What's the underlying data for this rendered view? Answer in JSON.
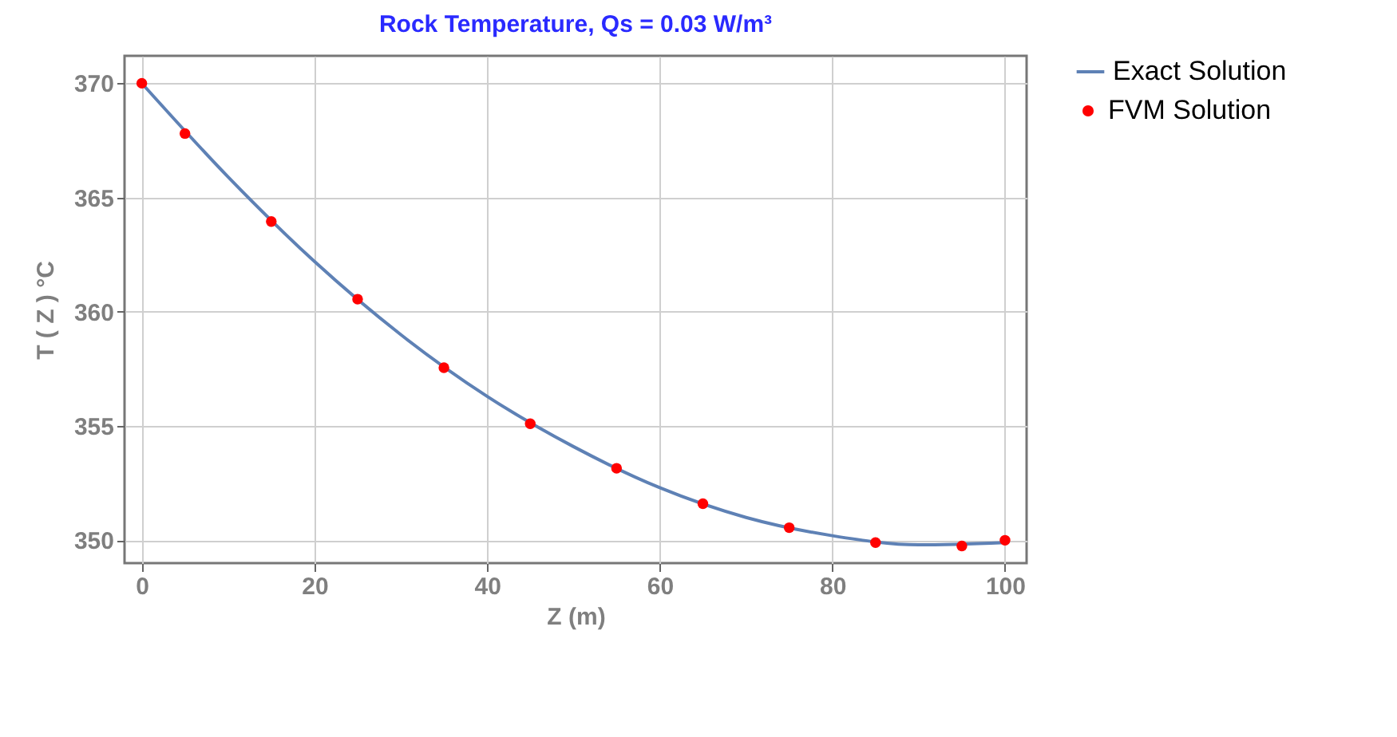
{
  "chart_data": {
    "type": "line",
    "title": "Rock Temperature,  Qs = 0.03 W/m³",
    "xlabel": "Z (m)",
    "ylabel": "T ( Z ) °C",
    "xlim": [
      -2,
      102.5
    ],
    "ylim": [
      349,
      371.2
    ],
    "xticks": [
      0,
      20,
      40,
      60,
      80,
      100
    ],
    "yticks": [
      350,
      355,
      360,
      365,
      370
    ],
    "grid": true,
    "legend": "right",
    "series": [
      {
        "name": "Exact Solution",
        "color": "#5e81b5",
        "marker": "none",
        "line_style": "solid",
        "x": [
          0,
          10,
          20,
          30,
          40,
          50,
          60,
          70,
          80,
          90,
          100
        ],
        "values": [
          370,
          365.9,
          362.2,
          359.0,
          356.3,
          354.1,
          352.3,
          351.0,
          350.2,
          349.8,
          349.9
        ]
      },
      {
        "name": "FVM Solution",
        "type": "scatter",
        "color": "#ff0000",
        "marker": "circle",
        "x": [
          0,
          5,
          15,
          25,
          35,
          45,
          55,
          65,
          75,
          85,
          95,
          100
        ],
        "values": [
          370,
          367.8,
          363.95,
          360.55,
          357.55,
          355.1,
          353.15,
          351.6,
          350.55,
          349.9,
          349.75,
          350.0
        ]
      }
    ]
  }
}
